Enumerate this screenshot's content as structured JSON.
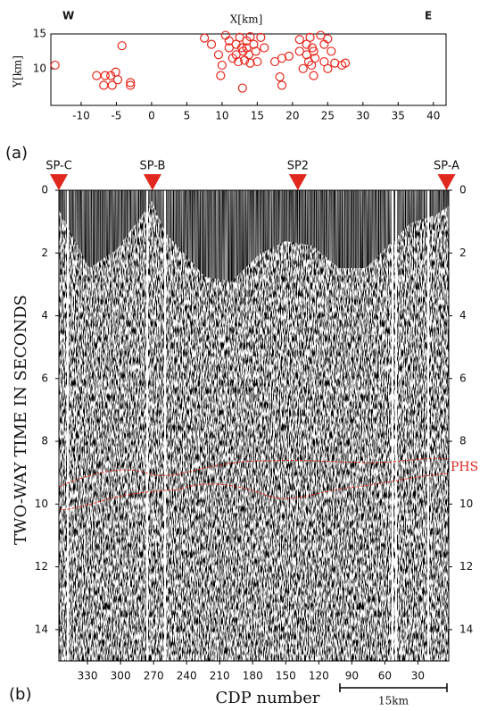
{
  "chart_data": [
    {
      "type": "scatter",
      "panel_label": "(a)",
      "xlabel": "X[km]",
      "ylabel": "Y[km]",
      "left_label": "W",
      "right_label": "E",
      "color": "#e8281e",
      "x": [
        -13.7,
        -7.8,
        -6.8,
        -6.6,
        -5.8,
        -5.6,
        -5.1,
        -4.8,
        -4.2,
        -3.0,
        -3.0,
        7.5,
        8.5,
        9.5,
        10.0,
        9.8,
        10.5,
        11.0,
        11.5,
        11.0,
        12.0,
        12.0,
        12.3,
        12.5,
        12.8,
        12.9,
        13.0,
        13.2,
        13.5,
        13.5,
        13.8,
        14.0,
        14.0,
        14.5,
        14.8,
        15.0,
        15.5,
        16.0,
        17.5,
        18.5,
        18.2,
        18.5,
        19.5,
        21.0,
        21.0,
        21.5,
        22.0,
        22.0,
        22.3,
        22.5,
        22.8,
        23.0,
        23.0,
        23.2,
        24.0,
        24.5,
        24.5,
        25.0,
        25.5,
        26.0,
        27.0,
        27.5,
        25.0,
        22.7
      ],
      "y": [
        10.5,
        9.0,
        7.6,
        9.0,
        9.0,
        7.6,
        9.5,
        8.4,
        13.3,
        8.0,
        7.6,
        14.4,
        13.5,
        12.0,
        10.5,
        9.0,
        14.8,
        13.0,
        11.5,
        14.0,
        13.5,
        12.0,
        11.0,
        14.5,
        13.0,
        7.2,
        12.5,
        11.2,
        14.0,
        13.0,
        12.0,
        14.6,
        10.8,
        13.5,
        12.5,
        11.0,
        14.5,
        13.0,
        11.0,
        11.5,
        8.8,
        7.6,
        11.8,
        14.2,
        12.5,
        10.0,
        13.5,
        12.0,
        11.0,
        14.5,
        13.0,
        12.5,
        9.0,
        11.5,
        14.8,
        13.5,
        11.0,
        10.0,
        12.5,
        10.8,
        10.5,
        10.8,
        14.3,
        10.5
      ],
      "xlim": [
        -14.3,
        41.8
      ],
      "ylim": [
        4.7,
        15
      ],
      "xticks": [
        -10,
        -5,
        0,
        5,
        10,
        15,
        20,
        25,
        30,
        35,
        40
      ],
      "yticks": [
        10,
        15
      ]
    },
    {
      "type": "seismic",
      "panel_label": "(b)",
      "xlabel": "CDP number",
      "ylabel": "TWO-WAY TIME IN SECONDS",
      "xlim": [
        356,
        2
      ],
      "ylim": [
        0,
        15
      ],
      "xticks": [
        330,
        300,
        270,
        240,
        210,
        180,
        150,
        120,
        90,
        60,
        30
      ],
      "yticks": [
        0,
        2,
        4,
        6,
        8,
        10,
        12,
        14
      ],
      "shot_points": [
        {
          "label": "SP-C",
          "x": 356
        },
        {
          "label": "SP-B",
          "x": 271
        },
        {
          "label": "SP2",
          "x": 139
        },
        {
          "label": "SP-A",
          "x": 4
        }
      ],
      "marker_color": "#e0281e",
      "annotation": "PHS",
      "scale_bar": "15km"
    }
  ]
}
